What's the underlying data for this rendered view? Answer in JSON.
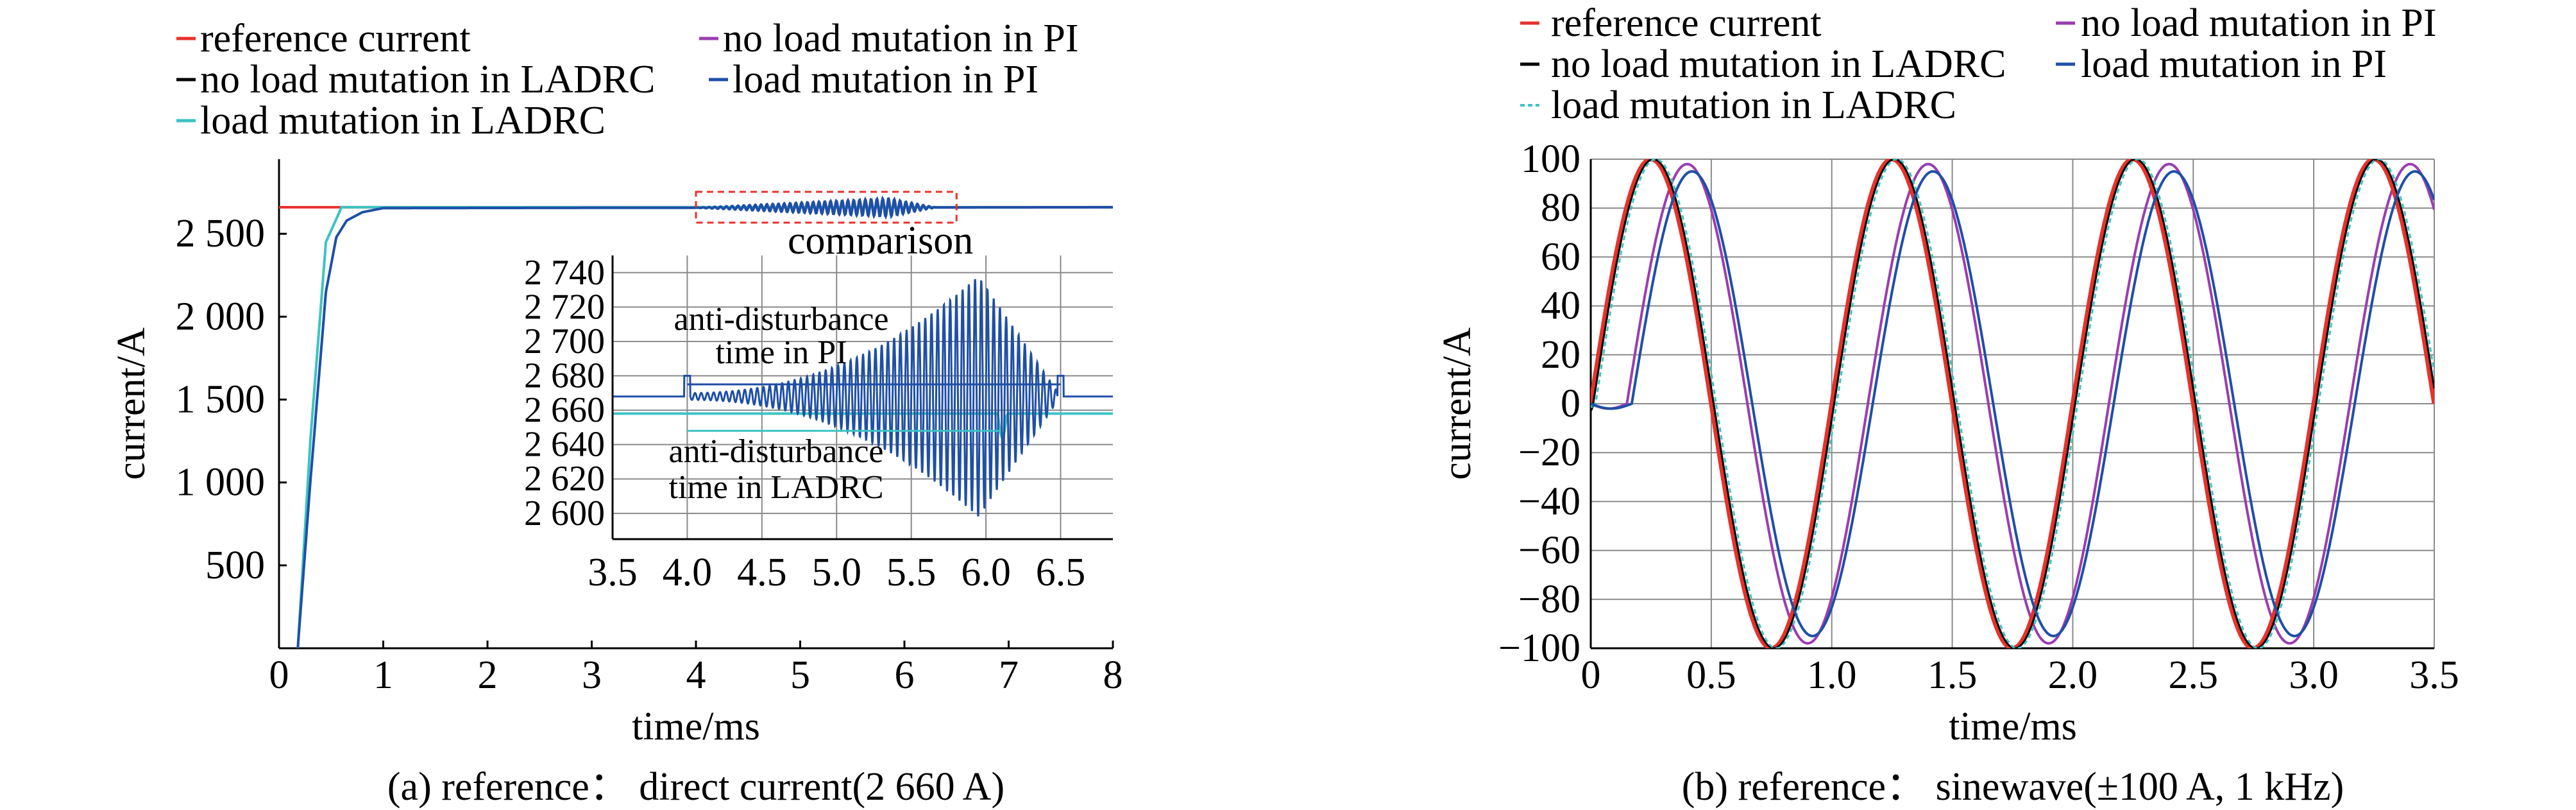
{
  "colors": {
    "reference": "#e8312a",
    "ladrc_no_load": "#000000",
    "ladrc_load": "#3cc3c3",
    "pi_no_load": "#9a3db0",
    "pi_load": "#1f4fa6",
    "annotation_box": "#e8312a",
    "grid": "#8a8a8a"
  },
  "chart_data": [
    {
      "type": "line",
      "caption": "(a) reference： direct current(2 660 A)",
      "xlabel": "time/ms",
      "ylabel": "current/A",
      "xlim": [
        0,
        8
      ],
      "ylim": [
        0,
        2950
      ],
      "xticks": [
        "0",
        "1",
        "2",
        "3",
        "4",
        "5",
        "6",
        "7",
        "8"
      ],
      "yticks": [
        "500",
        "1 000",
        "1 500",
        "2 000",
        "2 500"
      ],
      "ytick_values": [
        500,
        1000,
        1500,
        2000,
        2500
      ],
      "legend": [
        "reference current",
        "no load mutation in PI",
        "no load mutation in LADRC",
        "load mutation in PI",
        "load mutation in LADRC"
      ],
      "series": [
        {
          "name": "reference current",
          "x": [
            0,
            0.5,
            8
          ],
          "y": [
            2660,
            2660,
            2660
          ]
        },
        {
          "name": "load mutation in LADRC",
          "x": [
            0.18,
            0.3,
            0.45,
            0.6,
            8
          ],
          "y": [
            0,
            1250,
            2450,
            2660,
            2660
          ]
        },
        {
          "name": "load mutation in PI",
          "x": [
            0.18,
            0.3,
            0.45,
            0.55,
            0.65,
            0.8,
            1.0,
            8
          ],
          "y": [
            0,
            1000,
            2150,
            2480,
            2580,
            2630,
            2655,
            2660
          ]
        }
      ],
      "annotation": "comparison",
      "comparison_box_x": [
        4.0,
        6.5
      ],
      "inset": {
        "xlim": [
          3.5,
          6.85
        ],
        "ylim": [
          2585,
          2750
        ],
        "xticks": [
          "3.5",
          "4.0",
          "4.5",
          "5.0",
          "5.5",
          "6.0",
          "6.5"
        ],
        "xtick_values": [
          3.5,
          4.0,
          4.5,
          5.0,
          5.5,
          6.0,
          6.5
        ],
        "yticks": [
          "2 740",
          "2 720",
          "2 700",
          "2 680",
          "2 660",
          "2 640",
          "2 620",
          "2 600"
        ],
        "ytick_values": [
          2740,
          2720,
          2700,
          2680,
          2660,
          2640,
          2620,
          2600
        ],
        "note_pi": [
          "anti-disturbance",
          "time in PI"
        ],
        "note_ladrc": [
          "anti-disturbance",
          "time in LADRC"
        ],
        "pi_span": [
          4.0,
          6.5
        ],
        "ladrc_span": [
          4.0,
          6.1
        ],
        "pi_baseline": 2668,
        "ladrc_baseline": 2658,
        "pi_peak": 2738,
        "pi_trough": 2595
      }
    },
    {
      "type": "line",
      "caption": "(b) reference： sinewave(±100 A, 1 kHz)",
      "xlabel": "time/ms",
      "ylabel": "current/A",
      "xlim": [
        0,
        3.5
      ],
      "ylim": [
        -100,
        100
      ],
      "xticks": [
        "0",
        "0.5",
        "1.0",
        "1.5",
        "2.0",
        "2.5",
        "3.0",
        "3.5"
      ],
      "xtick_values": [
        0,
        0.5,
        1.0,
        1.5,
        2.0,
        2.5,
        3.0,
        3.5
      ],
      "yticks": [
        "100",
        "80",
        "60",
        "40",
        "20",
        "0",
        "−20",
        "−40",
        "−60",
        "−80",
        "−100"
      ],
      "ytick_values": [
        100,
        80,
        60,
        40,
        20,
        0,
        -20,
        -40,
        -60,
        -80,
        -100
      ],
      "legend": [
        "reference current",
        "no load mutation in PI",
        "no load mutation in LADRC",
        "load mutation in PI",
        "load mutation in LADRC"
      ],
      "series": [
        {
          "name": "reference current",
          "amplitude": 100,
          "freq_khz": 1,
          "lag_ms": 0
        },
        {
          "name": "no load mutation in LADRC",
          "amplitude": 100,
          "freq_khz": 1,
          "lag_ms": 0.01
        },
        {
          "name": "load mutation in LADRC",
          "amplitude": 100,
          "freq_khz": 1,
          "lag_ms": 0.02
        },
        {
          "name": "no load mutation in PI",
          "amplitude": 98,
          "freq_khz": 1,
          "lag_ms": 0.15
        },
        {
          "name": "load mutation in PI",
          "amplitude": 95,
          "freq_khz": 1,
          "lag_ms": 0.17
        }
      ]
    }
  ]
}
